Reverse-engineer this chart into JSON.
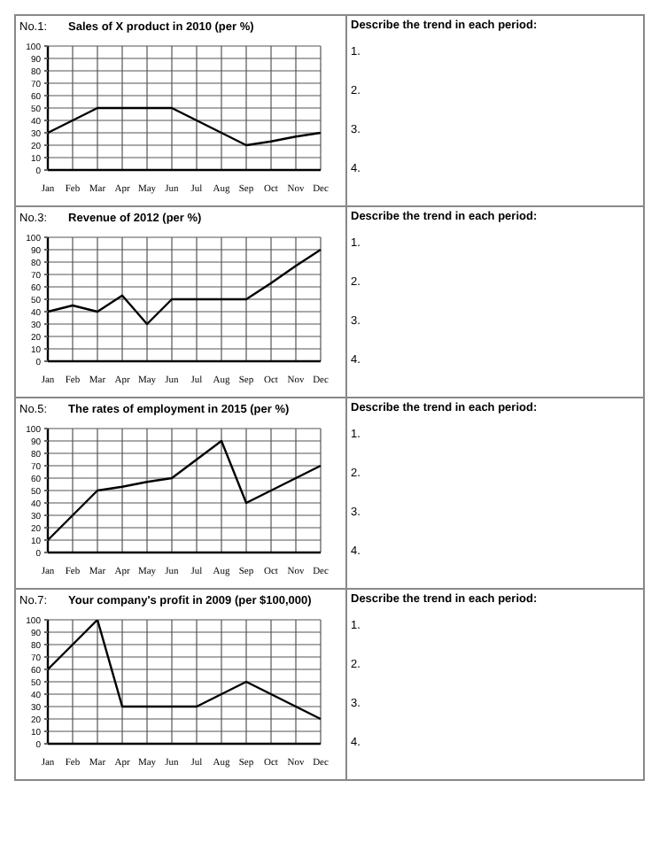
{
  "chart_data": [
    {
      "type": "line",
      "title": "Sales of X product in 2010 (per %)",
      "annotations": [
        "No.1:",
        "Describe the trend in each period:",
        "1.",
        "2.",
        "3.",
        "4."
      ],
      "categories": [
        "Jan",
        "Feb",
        "Mar",
        "Apr",
        "May",
        "Jun",
        "Jul",
        "Aug",
        "Sep",
        "Oct",
        "Nov",
        "Dec"
      ],
      "values": [
        30,
        40,
        50,
        50,
        50,
        50,
        40,
        30,
        20,
        23,
        27,
        30
      ],
      "color": "#000000",
      "ylim": [
        0,
        100
      ],
      "yticks": [
        0,
        10,
        20,
        30,
        40,
        50,
        60,
        70,
        80,
        90,
        100
      ],
      "grid": true
    },
    {
      "type": "line",
      "title": "Revenue of 2012 (per %)",
      "annotations": [
        "No.3:",
        "Describe the trend in each period:",
        "1.",
        "2.",
        "3.",
        "4."
      ],
      "categories": [
        "Jan",
        "Feb",
        "Mar",
        "Apr",
        "May",
        "Jun",
        "Jul",
        "Aug",
        "Sep",
        "Oct",
        "Nov",
        "Dec"
      ],
      "values": [
        40,
        45,
        40,
        53,
        30,
        50,
        50,
        50,
        50,
        63,
        77,
        90
      ],
      "color": "#000000",
      "ylim": [
        0,
        100
      ],
      "yticks": [
        0,
        10,
        20,
        30,
        40,
        50,
        60,
        70,
        80,
        90,
        100
      ],
      "grid": true
    },
    {
      "type": "line",
      "title": "The rates of employment in 2015 (per %)",
      "annotations": [
        "No.5:",
        "Describe the trend in each period:",
        "1.",
        "2.",
        "3.",
        "4."
      ],
      "categories": [
        "Jan",
        "Feb",
        "Mar",
        "Apr",
        "May",
        "Jun",
        "Jul",
        "Aug",
        "Sep",
        "Oct",
        "Nov",
        "Dec"
      ],
      "values": [
        10,
        30,
        50,
        53,
        57,
        60,
        75,
        90,
        40,
        50,
        60,
        70
      ],
      "color": "#000000",
      "ylim": [
        0,
        100
      ],
      "yticks": [
        0,
        10,
        20,
        30,
        40,
        50,
        60,
        70,
        80,
        90,
        100
      ],
      "grid": true
    },
    {
      "type": "line",
      "title": "Your company's profit in 2009 (per $100,000)",
      "annotations": [
        "No.7:",
        "Describe the trend in each period:",
        "1.",
        "2.",
        "3.",
        "4."
      ],
      "categories": [
        "Jan",
        "Feb",
        "Mar",
        "Apr",
        "May",
        "Jun",
        "Jul",
        "Aug",
        "Sep",
        "Oct",
        "Nov",
        "Dec"
      ],
      "values": [
        60,
        80,
        100,
        30,
        30,
        30,
        30,
        40,
        50,
        40,
        30,
        20
      ],
      "color": "#000000",
      "ylim": [
        0,
        100
      ],
      "yticks": [
        0,
        10,
        20,
        30,
        40,
        50,
        60,
        70,
        80,
        90,
        100
      ],
      "grid": true
    }
  ]
}
